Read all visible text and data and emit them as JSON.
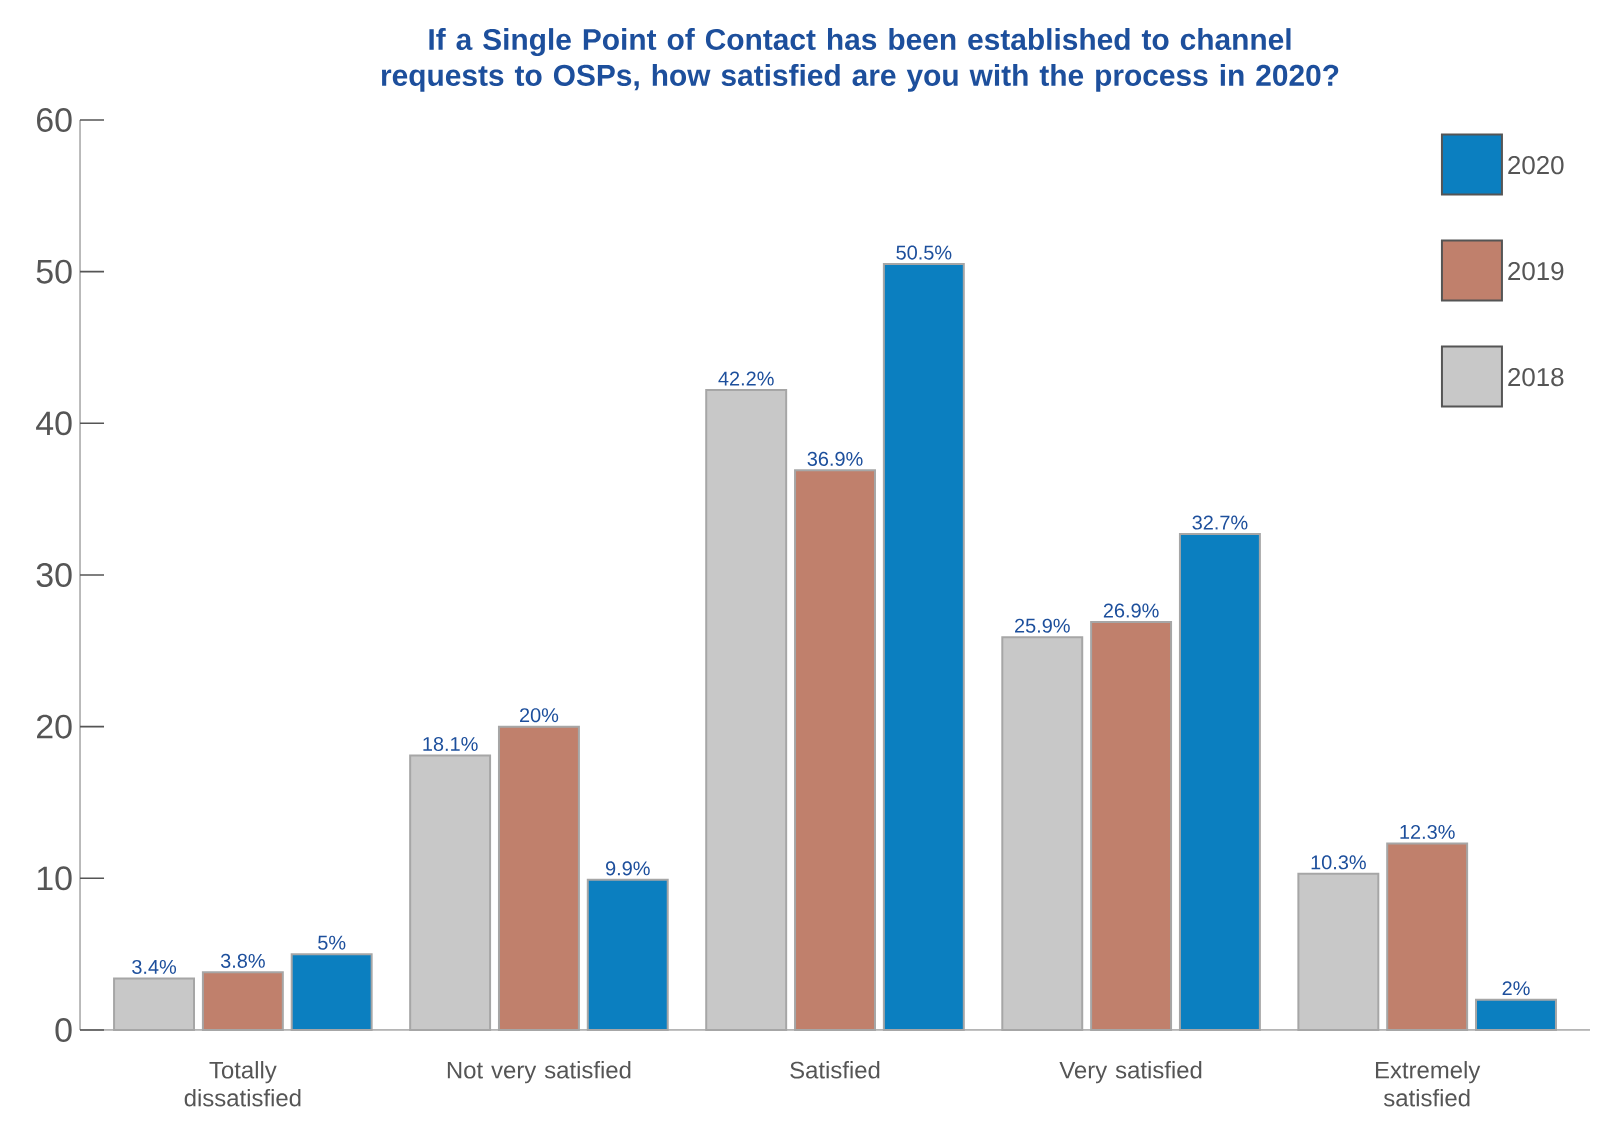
{
  "chart_data": {
    "type": "bar",
    "title": "If a Single Point of Contact has been established to channel requests to OSPs, how satisfied are you with the process in 2020?",
    "categories": [
      "Totally dissatisfied",
      "Not very satisfied",
      "Satisfied",
      "Very satisfied",
      "Extremely satisfied"
    ],
    "series": [
      {
        "name": "2018",
        "color": "#c8c8c8",
        "values": [
          3.4,
          18.1,
          42.2,
          25.9,
          10.3
        ],
        "value_labels": [
          "3.4%",
          "18.1%",
          "42.2%",
          "25.9%",
          "10.3%"
        ]
      },
      {
        "name": "2019",
        "color": "#c0806c",
        "values": [
          3.8,
          20,
          36.9,
          26.9,
          12.3
        ],
        "value_labels": [
          "3.8%",
          "20%",
          "36.9%",
          "26.9%",
          "12.3%"
        ]
      },
      {
        "name": "2020",
        "color": "#0b7fc0",
        "values": [
          5,
          9.9,
          50.5,
          32.7,
          2
        ],
        "value_labels": [
          "5%",
          "9.9%",
          "50.5%",
          "32.7%",
          "2%"
        ]
      }
    ],
    "ylim": [
      0,
      60
    ],
    "yticks": [
      0,
      10,
      20,
      30,
      40,
      50,
      60
    ],
    "grid": false,
    "legend": "top right"
  }
}
